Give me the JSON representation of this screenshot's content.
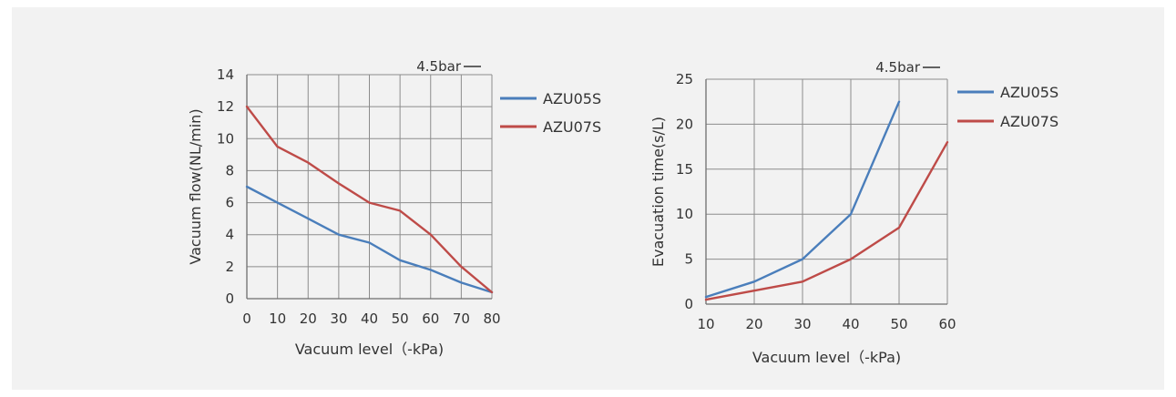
{
  "chart_data": [
    {
      "type": "line",
      "note_label": "4.5bar",
      "xlabel": "Vacuum level（-kPa)",
      "ylabel": "Vacuum flow(NL/min)",
      "x": [
        0,
        10,
        20,
        30,
        40,
        50,
        60,
        70,
        80
      ],
      "xlim": [
        0,
        80
      ],
      "ylim": [
        0,
        14
      ],
      "xticks": [
        "0",
        "10",
        "20",
        "30",
        "40",
        "50",
        "60",
        "70",
        "80"
      ],
      "yticks": [
        "0",
        "2",
        "4",
        "6",
        "8",
        "10",
        "12",
        "14"
      ],
      "grid": true,
      "legend_position": "right",
      "series": [
        {
          "name": "AZU05S",
          "color": "#4a7ebb",
          "values": [
            7,
            6,
            5,
            4,
            3.5,
            2.4,
            1.8,
            1.0,
            0.4
          ]
        },
        {
          "name": "AZU07S",
          "color": "#be4b48",
          "values": [
            12,
            9.5,
            8.5,
            7.2,
            6,
            5.5,
            4,
            2,
            0.4
          ]
        }
      ]
    },
    {
      "type": "line",
      "note_label": "4.5bar",
      "xlabel": "Vacuum level（-kPa)",
      "ylabel": "Evacuation time(s/L)",
      "x": [
        10,
        20,
        30,
        40,
        50,
        60
      ],
      "xlim": [
        10,
        60
      ],
      "ylim": [
        0,
        25
      ],
      "xticks": [
        "10",
        "20",
        "30",
        "40",
        "50",
        "60"
      ],
      "yticks": [
        "0",
        "5",
        "10",
        "15",
        "20",
        "25"
      ],
      "grid": true,
      "legend_position": "right",
      "series": [
        {
          "name": "AZU05S",
          "color": "#4a7ebb",
          "values": [
            0.8,
            2.5,
            5,
            10,
            22.5,
            null
          ]
        },
        {
          "name": "AZU07S",
          "color": "#be4b48",
          "values": [
            0.5,
            1.5,
            2.5,
            5,
            8.5,
            18
          ]
        }
      ]
    }
  ]
}
